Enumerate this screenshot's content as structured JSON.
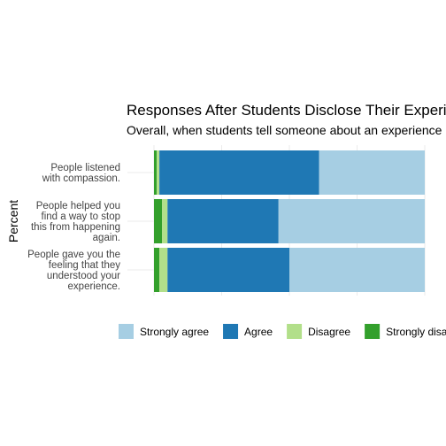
{
  "chart_data": {
    "type": "bar",
    "orientation": "horizontal",
    "stacked": true,
    "percent": true,
    "title": "Responses After Students Disclose Their Experiences",
    "subtitle": "Overall, when students tell someone about an experience",
    "ylabel": "Percent",
    "xlim": [
      0,
      1
    ],
    "grid": true,
    "legend_position": "bottom",
    "categories": [
      "People listened with compassion.",
      "People helped you find a way to stop this from happening again.",
      "People gave you the feeling that they understood your experience."
    ],
    "category_lines": [
      [
        "People listened",
        "with compassion."
      ],
      [
        "People helped you",
        "find a way to stop",
        "this from happening",
        "again."
      ],
      [
        "People gave you the",
        "feeling that they",
        "understood your",
        "experience."
      ]
    ],
    "series": [
      {
        "name": "Strongly disagree",
        "color": "#33a02c",
        "values": [
          0.01,
          0.03,
          0.02
        ]
      },
      {
        "name": "Disagree",
        "color": "#b2df8a",
        "values": [
          0.01,
          0.02,
          0.03
        ]
      },
      {
        "name": "Agree",
        "color": "#1f78b4",
        "values": [
          0.59,
          0.41,
          0.45
        ]
      },
      {
        "name": "Strongly agree",
        "color": "#a6cee3",
        "values": [
          0.39,
          0.54,
          0.5
        ]
      }
    ],
    "legend_order": [
      "Strongly agree",
      "Agree",
      "Disagree",
      "Strongly disagree"
    ]
  }
}
